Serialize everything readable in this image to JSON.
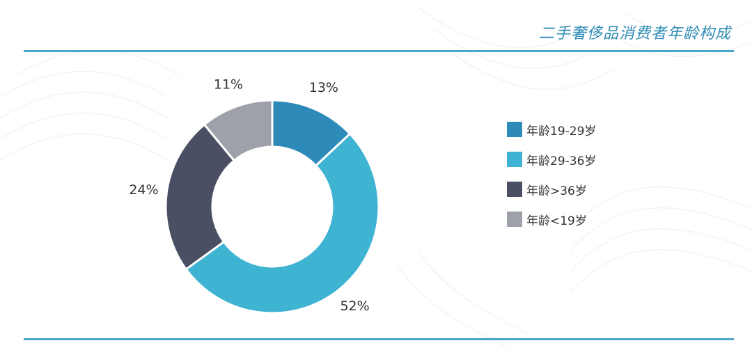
{
  "page": {
    "title": "二手奢侈品消费者年龄构成"
  },
  "colors": {
    "accent": "#2e8bb5",
    "rule": "#4aa6cf"
  },
  "chart_data": {
    "type": "pie",
    "subtype": "donut",
    "title": "二手奢侈品消费者年龄构成",
    "legend_position": "right",
    "series": [
      {
        "name": "年龄19-29岁",
        "value": 13,
        "label": "13%",
        "color": "#2e8ab8"
      },
      {
        "name": "年龄29-36岁",
        "value": 52,
        "label": "52%",
        "color": "#3eb3d2"
      },
      {
        "name": "年龄>36岁",
        "value": 24,
        "label": "24%",
        "color": "#4a4f63"
      },
      {
        "name": "年龄<19岁",
        "value": 11,
        "label": "11%",
        "color": "#9ea1aa"
      }
    ]
  }
}
